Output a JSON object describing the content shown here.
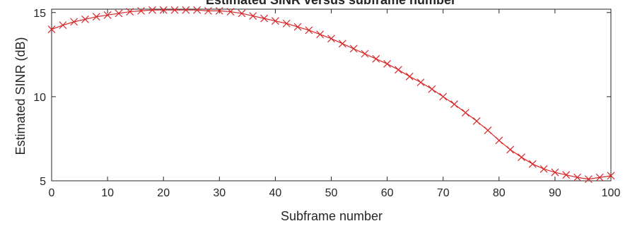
{
  "chart_data": {
    "type": "line",
    "title": "Estimated SINR versus subframe number",
    "xlabel": "Subframe number",
    "ylabel": "Estimated SINR (dB)",
    "xlim": [
      0,
      100
    ],
    "ylim": [
      5,
      15.2
    ],
    "xticks": [
      0,
      10,
      20,
      30,
      40,
      50,
      60,
      70,
      80,
      90,
      100
    ],
    "yticks": [
      5,
      10,
      15
    ],
    "grid": false,
    "legend": "none",
    "series": [
      {
        "color": "#d62728",
        "marker": "x",
        "x": [
          0,
          2,
          4,
          6,
          8,
          10,
          12,
          14,
          16,
          18,
          20,
          22,
          24,
          26,
          28,
          30,
          32,
          34,
          36,
          38,
          40,
          42,
          44,
          46,
          48,
          50,
          52,
          54,
          56,
          58,
          60,
          62,
          64,
          66,
          68,
          70,
          72,
          74,
          76,
          78,
          80,
          82,
          84,
          86,
          88,
          90,
          92,
          94,
          96,
          98,
          100
        ],
        "y": [
          14.0,
          14.25,
          14.45,
          14.6,
          14.75,
          14.85,
          14.95,
          15.05,
          15.1,
          15.15,
          15.15,
          15.15,
          15.15,
          15.15,
          15.1,
          15.1,
          15.05,
          14.95,
          14.8,
          14.65,
          14.5,
          14.35,
          14.15,
          13.95,
          13.7,
          13.45,
          13.15,
          12.85,
          12.55,
          12.25,
          11.95,
          11.6,
          11.2,
          10.85,
          10.45,
          10.0,
          9.55,
          9.05,
          8.55,
          8.0,
          7.4,
          6.85,
          6.4,
          6.0,
          5.7,
          5.5,
          5.35,
          5.2,
          5.1,
          5.2,
          5.3
        ]
      }
    ]
  }
}
